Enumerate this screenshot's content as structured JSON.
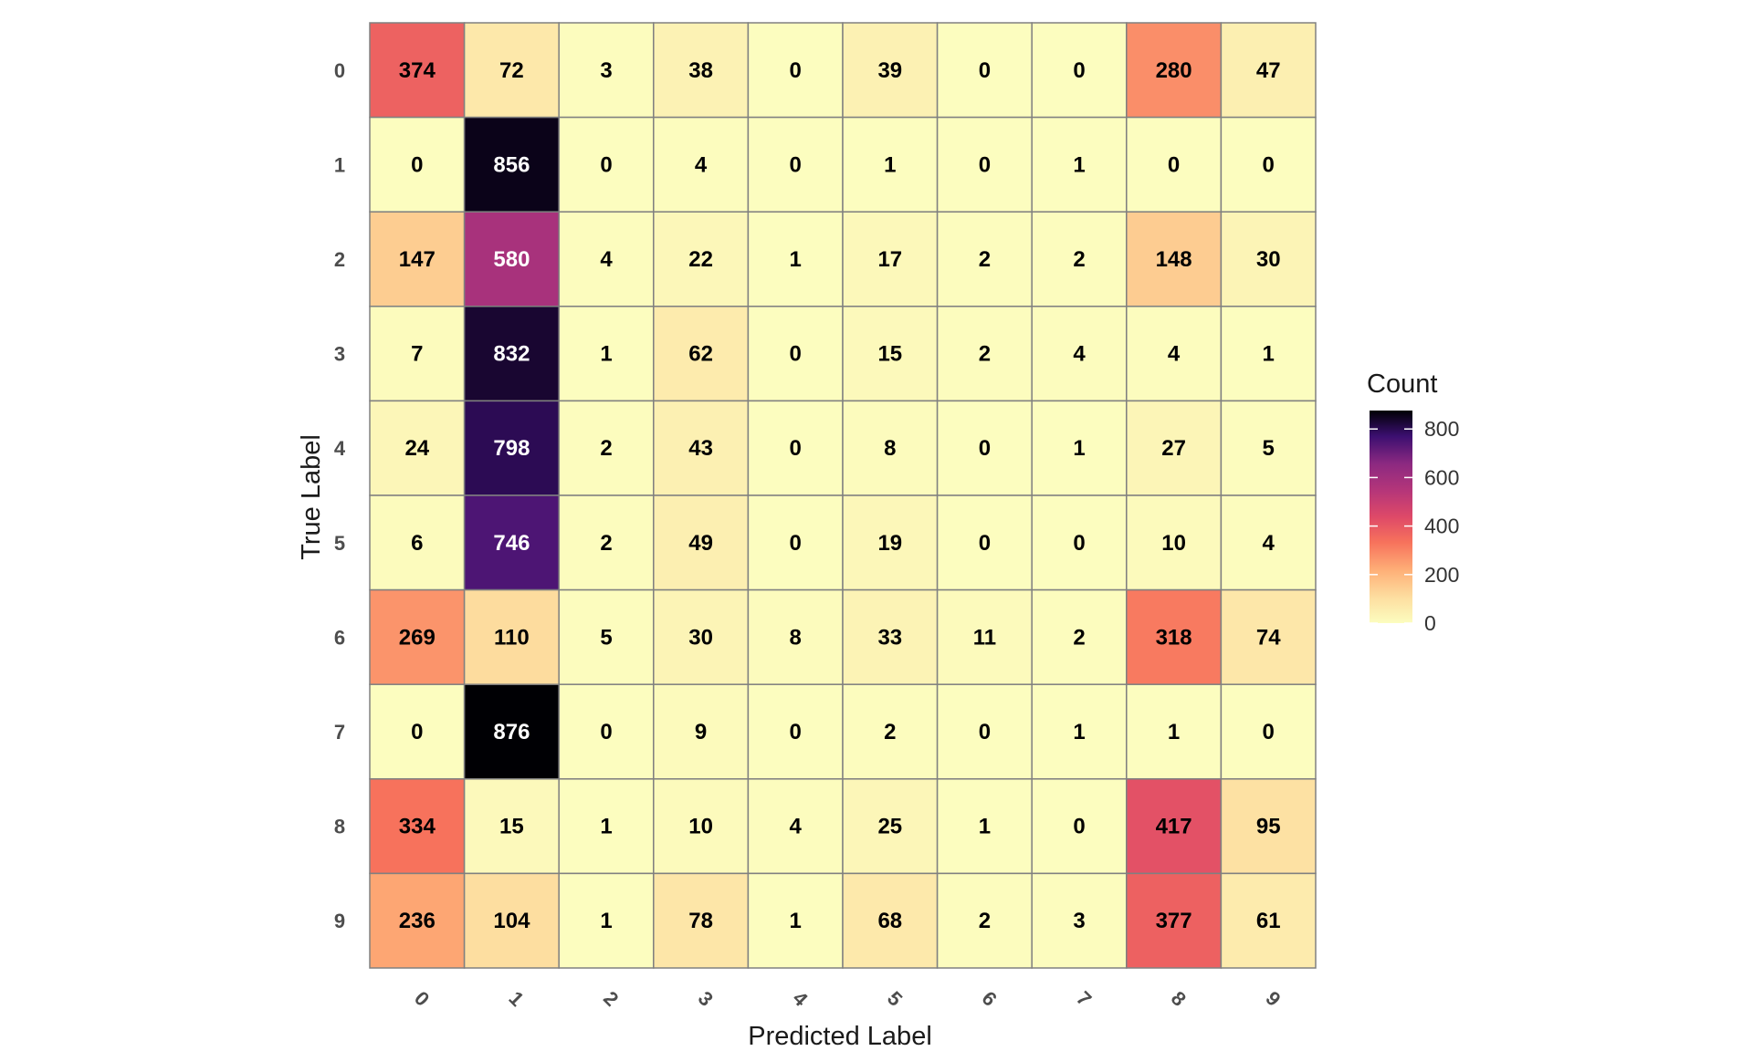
{
  "chart_data": {
    "type": "heatmap",
    "xlabel": "Predicted Label",
    "ylabel": "True Label",
    "x_categories": [
      "0",
      "1",
      "2",
      "3",
      "4",
      "5",
      "6",
      "7",
      "8",
      "9"
    ],
    "y_categories": [
      "0",
      "1",
      "2",
      "3",
      "4",
      "5",
      "6",
      "7",
      "8",
      "9"
    ],
    "values": [
      [
        374,
        72,
        3,
        38,
        0,
        39,
        0,
        0,
        280,
        47
      ],
      [
        0,
        856,
        0,
        4,
        0,
        1,
        0,
        1,
        0,
        0
      ],
      [
        147,
        580,
        4,
        22,
        1,
        17,
        2,
        2,
        148,
        30
      ],
      [
        7,
        832,
        1,
        62,
        0,
        15,
        2,
        4,
        4,
        1
      ],
      [
        24,
        798,
        2,
        43,
        0,
        8,
        0,
        1,
        27,
        5
      ],
      [
        6,
        746,
        2,
        49,
        0,
        19,
        0,
        0,
        10,
        4
      ],
      [
        269,
        110,
        5,
        30,
        8,
        33,
        11,
        2,
        318,
        74
      ],
      [
        0,
        876,
        0,
        9,
        0,
        2,
        0,
        1,
        1,
        0
      ],
      [
        334,
        15,
        1,
        10,
        4,
        25,
        1,
        0,
        417,
        95
      ],
      [
        236,
        104,
        1,
        78,
        1,
        68,
        2,
        3,
        377,
        61
      ]
    ],
    "legend": {
      "title": "Count",
      "ticks": [
        0,
        200,
        400,
        600,
        800
      ],
      "range": [
        0,
        876
      ],
      "placement": "right"
    },
    "colorscale": "magma-reversed",
    "x_tick_rotation": "45deg",
    "grid": false
  }
}
